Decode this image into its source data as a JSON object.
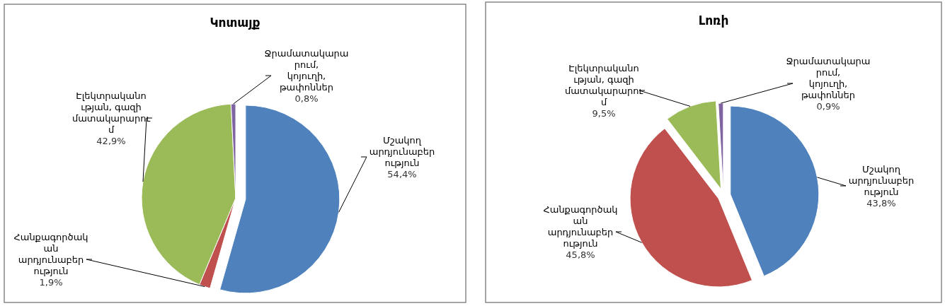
{
  "chart_data": [
    {
      "type": "pie",
      "title": "Կոտայք",
      "categories": [
        "Մշակող արդյունաբերություն",
        "Հանքագործական արդյունաբերություն",
        "Էլեկտրականության, գազի մատակարարում",
        "Ջրամատակարարում, կոյուղի, թափոններ"
      ],
      "values": [
        54.4,
        1.9,
        42.9,
        0.8
      ],
      "value_labels": [
        "54,4%",
        "1,9%",
        "42,9%",
        "0,8%"
      ],
      "colors": [
        "#4f81bd",
        "#c0504d",
        "#9bbb59",
        "#8064a2"
      ]
    },
    {
      "type": "pie",
      "title": "Լոռի",
      "categories": [
        "Մշակող արդյունաբերություն",
        "Հանքագործական արդյունաբերություն",
        "Էլեկտրականության, գազի մատակարարում",
        "Ջրամատակարարում, կոյուղի, թափոններ"
      ],
      "values": [
        43.8,
        45.8,
        9.5,
        0.9
      ],
      "value_labels": [
        "43,8%",
        "45,8%",
        "9,5%",
        "0,9%"
      ],
      "colors": [
        "#4f81bd",
        "#c0504d",
        "#9bbb59",
        "#8064a2"
      ]
    }
  ]
}
